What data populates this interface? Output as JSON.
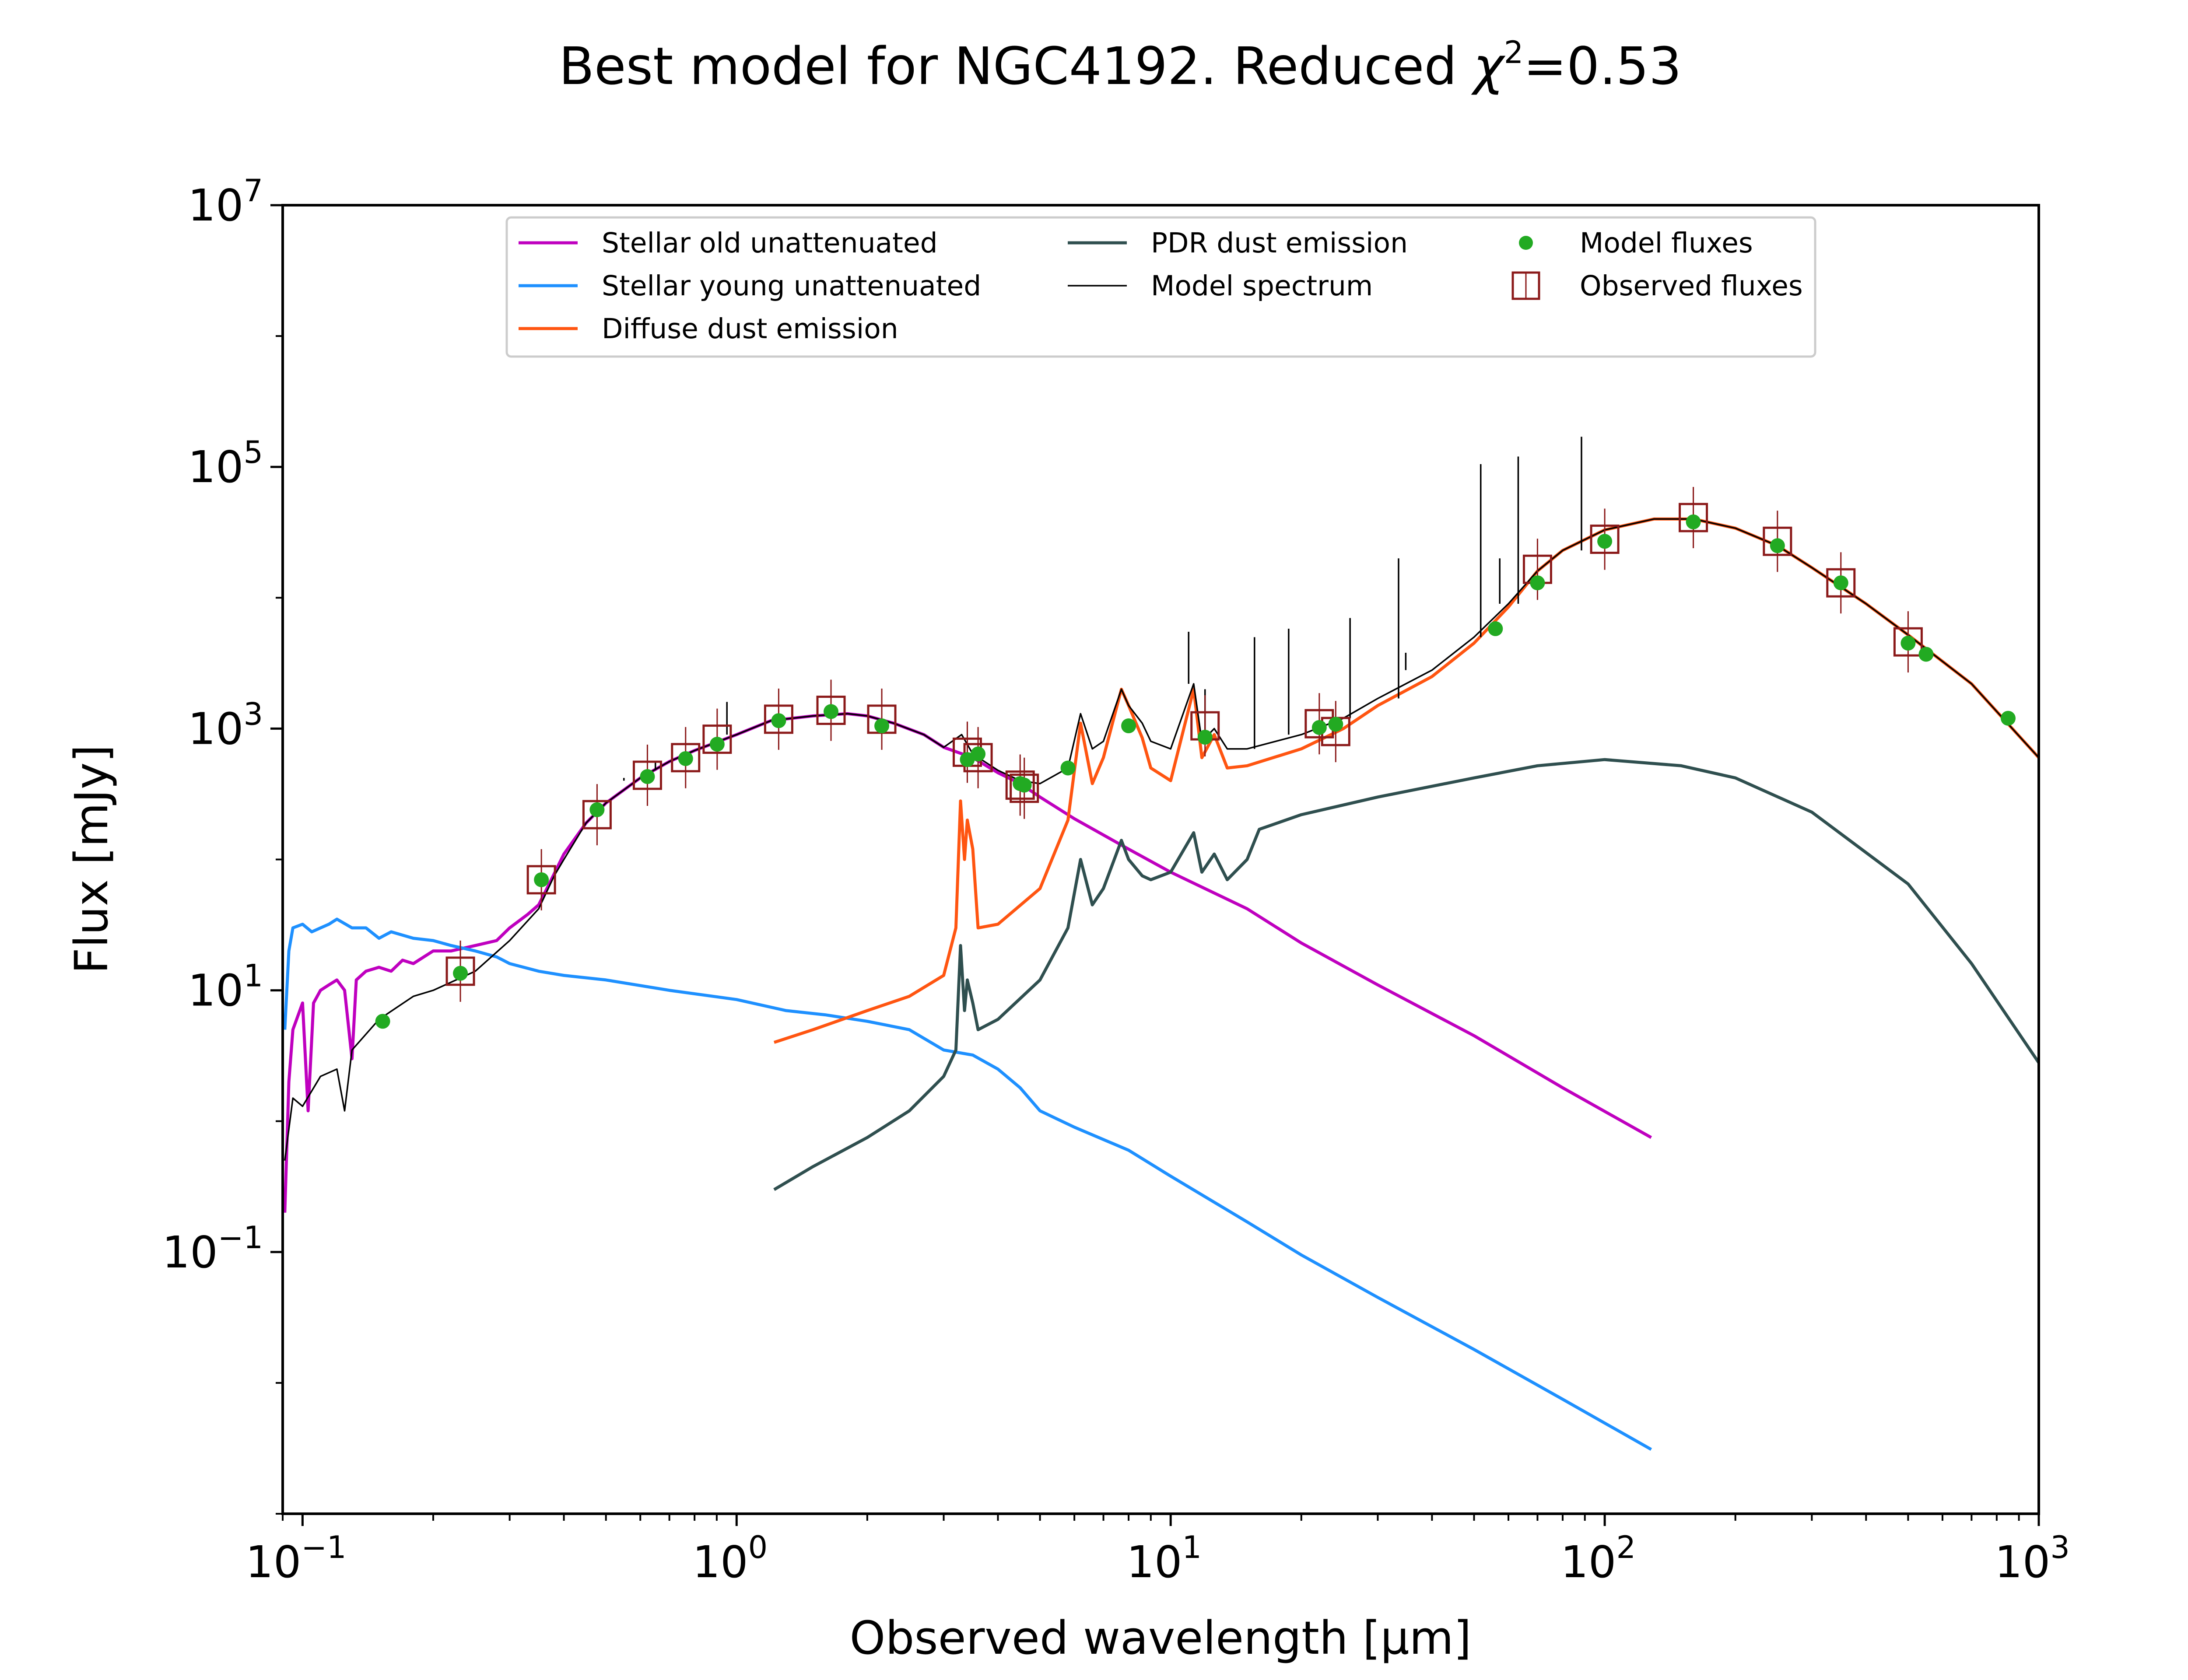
{
  "chart_data": {
    "type": "line",
    "title_prefix": "Best model for NGC4192. Reduced ",
    "title_chi": "χ",
    "title_exp": "2",
    "title_suffix": "=0.53",
    "xlabel": "Observed wavelength [μm]",
    "ylabel": "Flux [mJy]",
    "xscale": "log",
    "yscale": "log",
    "xlim": [
      0.09,
      1000
    ],
    "ylim": [
      0.001,
      10000000
    ],
    "grid": false,
    "legend_position": "top-center",
    "x_ticks": [
      {
        "base": "10",
        "exp": "−1",
        "value": 0.1
      },
      {
        "base": "10",
        "exp": "0",
        "value": 1
      },
      {
        "base": "10",
        "exp": "1",
        "value": 10
      },
      {
        "base": "10",
        "exp": "2",
        "value": 100
      },
      {
        "base": "10",
        "exp": "3",
        "value": 1000
      }
    ],
    "y_ticks": [
      {
        "base": "10",
        "exp": "−1",
        "value": 0.1
      },
      {
        "base": "10",
        "exp": "1",
        "value": 10
      },
      {
        "base": "10",
        "exp": "3",
        "value": 1000
      },
      {
        "base": "10",
        "exp": "5",
        "value": 100000
      },
      {
        "base": "10",
        "exp": "7",
        "value": 10000000
      }
    ],
    "series": [
      {
        "name": "Stellar old unattenuated",
        "color": "#bf00bf",
        "points": [
          [
            0.091,
            0.2
          ],
          [
            0.093,
            2
          ],
          [
            0.095,
            5
          ],
          [
            0.1,
            8
          ],
          [
            0.103,
            1.2
          ],
          [
            0.106,
            8
          ],
          [
            0.11,
            10
          ],
          [
            0.115,
            11
          ],
          [
            0.12,
            12
          ],
          [
            0.125,
            10
          ],
          [
            0.13,
            3
          ],
          [
            0.133,
            12
          ],
          [
            0.14,
            14
          ],
          [
            0.15,
            15
          ],
          [
            0.16,
            14
          ],
          [
            0.17,
            17
          ],
          [
            0.18,
            16
          ],
          [
            0.2,
            20
          ],
          [
            0.22,
            20
          ],
          [
            0.25,
            22
          ],
          [
            0.28,
            24
          ],
          [
            0.3,
            30
          ],
          [
            0.33,
            38
          ],
          [
            0.35,
            45
          ],
          [
            0.37,
            65
          ],
          [
            0.4,
            110
          ],
          [
            0.45,
            190
          ],
          [
            0.5,
            270
          ],
          [
            0.6,
            420
          ],
          [
            0.7,
            560
          ],
          [
            0.8,
            680
          ],
          [
            1.0,
            900
          ],
          [
            1.2,
            1150
          ],
          [
            1.5,
            1250
          ],
          [
            1.8,
            1300
          ],
          [
            2.0,
            1250
          ],
          [
            2.3,
            1100
          ],
          [
            2.7,
            900
          ],
          [
            3.0,
            720
          ],
          [
            3.5,
            600
          ],
          [
            4.0,
            460
          ],
          [
            4.5,
            380
          ],
          [
            5.0,
            300
          ],
          [
            6.0,
            205
          ],
          [
            8.0,
            120
          ],
          [
            10,
            80
          ],
          [
            15,
            42
          ],
          [
            20,
            23
          ],
          [
            30,
            11
          ],
          [
            50,
            4.5
          ],
          [
            80,
            1.8
          ],
          [
            128,
            0.75
          ]
        ]
      },
      {
        "name": "Stellar young unattenuated",
        "color": "#1e90ff",
        "points": [
          [
            0.091,
            5
          ],
          [
            0.093,
            20
          ],
          [
            0.095,
            30
          ],
          [
            0.1,
            32
          ],
          [
            0.105,
            28
          ],
          [
            0.11,
            30
          ],
          [
            0.115,
            32
          ],
          [
            0.12,
            35
          ],
          [
            0.13,
            30
          ],
          [
            0.14,
            30
          ],
          [
            0.15,
            25
          ],
          [
            0.16,
            28
          ],
          [
            0.18,
            25
          ],
          [
            0.2,
            24
          ],
          [
            0.22,
            22
          ],
          [
            0.25,
            20
          ],
          [
            0.28,
            18
          ],
          [
            0.3,
            16
          ],
          [
            0.35,
            14
          ],
          [
            0.4,
            13
          ],
          [
            0.5,
            12
          ],
          [
            0.7,
            10
          ],
          [
            1.0,
            8.5
          ],
          [
            1.3,
            7
          ],
          [
            1.6,
            6.5
          ],
          [
            2.0,
            5.8
          ],
          [
            2.5,
            5
          ],
          [
            3.0,
            3.5
          ],
          [
            3.5,
            3.2
          ],
          [
            4.0,
            2.5
          ],
          [
            4.5,
            1.8
          ],
          [
            5.0,
            1.2
          ],
          [
            6.0,
            0.9
          ],
          [
            8.0,
            0.6
          ],
          [
            10,
            0.38
          ],
          [
            15,
            0.17
          ],
          [
            20,
            0.095
          ],
          [
            30,
            0.045
          ],
          [
            50,
            0.018
          ],
          [
            80,
            0.0075
          ],
          [
            128,
            0.0031
          ]
        ]
      },
      {
        "name": "Diffuse dust emission",
        "color": "#ff5511",
        "points": [
          [
            1.22,
            4
          ],
          [
            1.5,
            5
          ],
          [
            2.0,
            7
          ],
          [
            2.5,
            9
          ],
          [
            3.0,
            13
          ],
          [
            3.2,
            30
          ],
          [
            3.28,
            280
          ],
          [
            3.35,
            100
          ],
          [
            3.4,
            200
          ],
          [
            3.5,
            120
          ],
          [
            3.6,
            30
          ],
          [
            4.0,
            32
          ],
          [
            5.0,
            60
          ],
          [
            5.8,
            200
          ],
          [
            6.2,
            1100
          ],
          [
            6.6,
            380
          ],
          [
            7.0,
            600
          ],
          [
            7.7,
            2000
          ],
          [
            8.0,
            1500
          ],
          [
            8.6,
            850
          ],
          [
            9.0,
            500
          ],
          [
            10,
            400
          ],
          [
            11.3,
            2000
          ],
          [
            11.8,
            600
          ],
          [
            12.6,
            900
          ],
          [
            13.5,
            500
          ],
          [
            15,
            520
          ],
          [
            20,
            700
          ],
          [
            25,
            1000
          ],
          [
            30,
            1500
          ],
          [
            40,
            2500
          ],
          [
            50,
            4500
          ],
          [
            60,
            8500
          ],
          [
            70,
            16000
          ],
          [
            80,
            23000
          ],
          [
            100,
            33000
          ],
          [
            130,
            40000
          ],
          [
            160,
            40000
          ],
          [
            200,
            34000
          ],
          [
            250,
            25000
          ],
          [
            300,
            17000
          ],
          [
            400,
            9000
          ],
          [
            500,
            5200
          ],
          [
            700,
            2200
          ],
          [
            1000,
            600
          ]
        ]
      },
      {
        "name": "PDR dust emission",
        "color": "#2f4f4f",
        "points": [
          [
            1.22,
            0.3
          ],
          [
            1.5,
            0.45
          ],
          [
            2.0,
            0.75
          ],
          [
            2.5,
            1.2
          ],
          [
            3.0,
            2.2
          ],
          [
            3.2,
            3.5
          ],
          [
            3.28,
            22
          ],
          [
            3.35,
            7
          ],
          [
            3.4,
            12
          ],
          [
            3.5,
            8
          ],
          [
            3.6,
            5
          ],
          [
            4.0,
            6
          ],
          [
            5.0,
            12
          ],
          [
            5.8,
            30
          ],
          [
            6.2,
            100
          ],
          [
            6.6,
            45
          ],
          [
            7.0,
            60
          ],
          [
            7.7,
            140
          ],
          [
            8.0,
            100
          ],
          [
            8.6,
            75
          ],
          [
            9.0,
            70
          ],
          [
            10,
            80
          ],
          [
            11.3,
            160
          ],
          [
            11.8,
            80
          ],
          [
            12.6,
            110
          ],
          [
            13.5,
            70
          ],
          [
            15,
            100
          ],
          [
            16,
            170
          ],
          [
            20,
            220
          ],
          [
            30,
            300
          ],
          [
            50,
            420
          ],
          [
            70,
            520
          ],
          [
            100,
            580
          ],
          [
            150,
            520
          ],
          [
            200,
            420
          ],
          [
            300,
            230
          ],
          [
            500,
            65
          ],
          [
            700,
            16
          ],
          [
            1000,
            2.8
          ]
        ]
      },
      {
        "name": "Model spectrum",
        "color": "#000000",
        "points": [
          [
            0.091,
            0.5
          ],
          [
            0.095,
            1.5
          ],
          [
            0.1,
            1.3
          ],
          [
            0.11,
            2.2
          ],
          [
            0.12,
            2.5
          ],
          [
            0.125,
            1.2
          ],
          [
            0.13,
            3.5
          ],
          [
            0.15,
            6
          ],
          [
            0.18,
            9
          ],
          [
            0.2,
            10
          ],
          [
            0.25,
            14
          ],
          [
            0.3,
            24
          ],
          [
            0.35,
            42
          ],
          [
            0.38,
            75
          ],
          [
            0.4,
            100
          ],
          [
            0.45,
            190
          ],
          [
            0.5,
            270
          ],
          [
            0.6,
            420
          ],
          [
            0.7,
            560
          ],
          [
            0.8,
            680
          ],
          [
            1.0,
            900
          ],
          [
            1.2,
            1150
          ],
          [
            1.5,
            1250
          ],
          [
            1.8,
            1300
          ],
          [
            2.0,
            1250
          ],
          [
            2.3,
            1100
          ],
          [
            2.7,
            900
          ],
          [
            3.0,
            720
          ],
          [
            3.3,
            900
          ],
          [
            3.5,
            640
          ],
          [
            4.0,
            480
          ],
          [
            4.5,
            400
          ],
          [
            5.0,
            380
          ],
          [
            5.8,
            500
          ],
          [
            6.2,
            1300
          ],
          [
            6.6,
            700
          ],
          [
            7.0,
            800
          ],
          [
            7.7,
            2000
          ],
          [
            8.0,
            1500
          ],
          [
            8.6,
            1100
          ],
          [
            9.0,
            800
          ],
          [
            10,
            700
          ],
          [
            11.3,
            2200
          ],
          [
            11.8,
            800
          ],
          [
            12.6,
            1000
          ],
          [
            13.5,
            700
          ],
          [
            15,
            700
          ],
          [
            20,
            900
          ],
          [
            25,
            1200
          ],
          [
            30,
            1700
          ],
          [
            40,
            2800
          ],
          [
            50,
            5000
          ],
          [
            60,
            9000
          ],
          [
            70,
            16000
          ],
          [
            80,
            23000
          ],
          [
            100,
            33000
          ],
          [
            130,
            40000
          ],
          [
            160,
            40000
          ],
          [
            200,
            34000
          ],
          [
            250,
            25000
          ],
          [
            300,
            17000
          ],
          [
            400,
            9000
          ],
          [
            500,
            5200
          ],
          [
            700,
            2200
          ],
          [
            1000,
            600
          ]
        ],
        "lines": [
          [
            0.55,
            400
          ],
          [
            0.65,
            480
          ],
          [
            0.95,
            1600
          ],
          [
            2.2,
            1100
          ],
          [
            11.0,
            5500
          ],
          [
            12.0,
            2000
          ],
          [
            15.6,
            5000
          ],
          [
            18.7,
            5800
          ],
          [
            25.9,
            7000
          ],
          [
            33.5,
            20000
          ],
          [
            34.8,
            3800
          ],
          [
            51.8,
            105000
          ],
          [
            57.3,
            20000
          ],
          [
            63.2,
            120000
          ],
          [
            88.4,
            170000
          ]
        ]
      }
    ],
    "model_fluxes": {
      "name": "Model fluxes",
      "color": "#22aa22",
      "x": [
        0.153,
        0.231,
        0.355,
        0.477,
        0.623,
        0.763,
        0.902,
        1.25,
        1.65,
        2.16,
        3.4,
        3.6,
        4.5,
        4.6,
        5.8,
        8.0,
        12.0,
        22.0,
        24.0,
        56,
        70,
        100,
        160,
        250,
        350,
        500,
        550,
        850
      ],
      "y": [
        5.8,
        13.5,
        70,
        240,
        430,
        590,
        760,
        1150,
        1350,
        1050,
        580,
        640,
        380,
        370,
        500,
        1050,
        860,
        1020,
        1080,
        5800,
        13000,
        27000,
        38000,
        25000,
        13000,
        4500,
        3700,
        1200
      ]
    },
    "observed_fluxes": {
      "name": "Observed fluxes",
      "color": "#8b1a1a",
      "x": [
        0.231,
        0.355,
        0.477,
        0.623,
        0.763,
        0.902,
        1.25,
        1.65,
        2.16,
        3.4,
        3.6,
        4.5,
        4.6,
        12.0,
        22.0,
        24.0,
        70,
        100,
        160,
        250,
        350,
        500
      ],
      "y": [
        14,
        70,
        220,
        440,
        600,
        830,
        1180,
        1380,
        1180,
        660,
        600,
        370,
        350,
        1050,
        1090,
        950,
        16500,
        28000,
        41000,
        27000,
        13000,
        4600
      ]
    }
  }
}
